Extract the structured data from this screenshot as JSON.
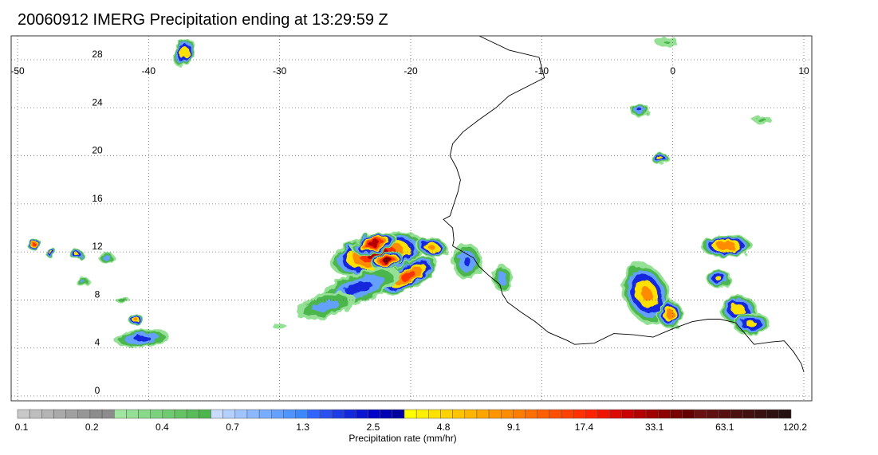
{
  "title": "20060912 IMERG Precipitation ending at 13:29:59 Z",
  "map": {
    "lon_range": [
      -50,
      10
    ],
    "lat_range": [
      -1,
      31
    ],
    "lon_ticks": [
      -50,
      -40,
      -30,
      -20,
      -10,
      0,
      10
    ],
    "lon_tick_labels": [
      "-50",
      "-40",
      "-30",
      "-20",
      "-10",
      "0",
      "10"
    ],
    "lat_ticks": [
      0,
      4,
      8,
      12,
      16,
      20,
      24,
      28
    ],
    "lat_tick_labels": [
      "0",
      "4",
      "8",
      "12",
      "16",
      "20",
      "24",
      "28"
    ],
    "grid": "dotted",
    "coastline": [
      [
        -14.8,
        30.0
      ],
      [
        -12.5,
        28.8
      ],
      [
        -10.2,
        28.2
      ],
      [
        -9.8,
        26.5
      ],
      [
        -12.5,
        25.0
      ],
      [
        -13.5,
        24.0
      ],
      [
        -14.8,
        23.0
      ],
      [
        -16.0,
        22.0
      ],
      [
        -16.8,
        21.0
      ],
      [
        -17.0,
        20.0
      ],
      [
        -16.5,
        19.0
      ],
      [
        -16.2,
        18.0
      ],
      [
        -16.4,
        17.0
      ],
      [
        -16.7,
        16.0
      ],
      [
        -17.0,
        15.0
      ],
      [
        -17.5,
        14.7
      ],
      [
        -16.8,
        14.0
      ],
      [
        -16.7,
        13.0
      ],
      [
        -16.8,
        12.5
      ],
      [
        -16.0,
        12.0
      ],
      [
        -15.2,
        11.5
      ],
      [
        -14.8,
        10.8
      ],
      [
        -14.0,
        10.0
      ],
      [
        -13.2,
        9.3
      ],
      [
        -13.0,
        8.5
      ],
      [
        -12.6,
        7.8
      ],
      [
        -11.6,
        7.0
      ],
      [
        -10.5,
        6.2
      ],
      [
        -9.5,
        5.3
      ],
      [
        -8.0,
        4.6
      ],
      [
        -7.5,
        4.3
      ],
      [
        -6.0,
        4.4
      ],
      [
        -4.5,
        5.2
      ],
      [
        -3.0,
        5.1
      ],
      [
        -1.5,
        4.9
      ],
      [
        0.0,
        5.6
      ],
      [
        1.5,
        6.2
      ],
      [
        2.7,
        6.4
      ],
      [
        3.6,
        6.4
      ],
      [
        4.8,
        6.1
      ],
      [
        5.5,
        5.2
      ],
      [
        6.2,
        4.3
      ],
      [
        7.5,
        4.5
      ],
      [
        8.5,
        4.6
      ],
      [
        9.2,
        3.7
      ],
      [
        9.8,
        2.7
      ],
      [
        10.0,
        2.0
      ]
    ],
    "rain_cells": [
      {
        "lon": -22.5,
        "lat": 11.8,
        "rx": 3.8,
        "ry": 1.8,
        "rot": -12,
        "peak": 31.0
      },
      {
        "lon": -22.8,
        "lat": 12.7,
        "rx": 1.8,
        "ry": 0.9,
        "rot": -15,
        "peak": 38.0
      },
      {
        "lon": -21.8,
        "lat": 11.3,
        "rx": 1.3,
        "ry": 0.7,
        "rot": -15,
        "peak": 42.0
      },
      {
        "lon": -20.2,
        "lat": 10.0,
        "rx": 2.6,
        "ry": 1.1,
        "rot": -30,
        "peak": 20.0
      },
      {
        "lon": -24.0,
        "lat": 9.0,
        "rx": 3.5,
        "ry": 1.3,
        "rot": -20,
        "peak": 2.5
      },
      {
        "lon": -26.5,
        "lat": 7.5,
        "rx": 2.5,
        "ry": 1.0,
        "rot": -15,
        "peak": 1.4
      },
      {
        "lon": -18.4,
        "lat": 12.4,
        "rx": 1.3,
        "ry": 0.8,
        "rot": 10,
        "peak": 9.5
      },
      {
        "lon": -15.7,
        "lat": 11.2,
        "rx": 1.2,
        "ry": 1.6,
        "rot": 0,
        "peak": 2.0
      },
      {
        "lon": -13.0,
        "lat": 9.8,
        "rx": 0.8,
        "ry": 1.2,
        "rot": 0,
        "peak": 1.5
      },
      {
        "lon": -2.0,
        "lat": 8.5,
        "rx": 1.8,
        "ry": 2.8,
        "rot": -25,
        "peak": 8.5
      },
      {
        "lon": -0.2,
        "lat": 6.8,
        "rx": 1.0,
        "ry": 1.2,
        "rot": 0,
        "peak": 12.0
      },
      {
        "lon": 4.1,
        "lat": 12.5,
        "rx": 2.0,
        "ry": 1.0,
        "rot": 0,
        "peak": 14.0
      },
      {
        "lon": 5.0,
        "lat": 7.2,
        "rx": 1.5,
        "ry": 1.2,
        "rot": 0,
        "peak": 6.0
      },
      {
        "lon": 6.0,
        "lat": 6.0,
        "rx": 1.5,
        "ry": 1.0,
        "rot": 0,
        "peak": 5.0
      },
      {
        "lon": 3.5,
        "lat": 9.8,
        "rx": 1.0,
        "ry": 0.8,
        "rot": 0,
        "peak": 4.8
      },
      {
        "lon": -40.5,
        "lat": 4.8,
        "rx": 2.2,
        "ry": 0.8,
        "rot": -5,
        "peak": 2.4
      },
      {
        "lon": -41.0,
        "lat": 6.4,
        "rx": 0.6,
        "ry": 0.5,
        "rot": 0,
        "peak": 9.0
      },
      {
        "lon": -37.3,
        "lat": 28.6,
        "rx": 0.8,
        "ry": 1.3,
        "rot": 25,
        "peak": 7.0
      },
      {
        "lon": -48.7,
        "lat": 12.6,
        "rx": 0.6,
        "ry": 0.5,
        "rot": 0,
        "peak": 20.0
      },
      {
        "lon": -47.5,
        "lat": 12.0,
        "rx": 0.5,
        "ry": 0.4,
        "rot": 0,
        "peak": 6.0
      },
      {
        "lon": -45.5,
        "lat": 11.8,
        "rx": 0.6,
        "ry": 0.4,
        "rot": 0,
        "peak": 5.0
      },
      {
        "lon": -43.2,
        "lat": 11.5,
        "rx": 0.7,
        "ry": 0.4,
        "rot": 0,
        "peak": 1.5
      },
      {
        "lon": -45.0,
        "lat": 9.5,
        "rx": 0.6,
        "ry": 0.4,
        "rot": 0,
        "peak": 1.2
      },
      {
        "lon": -42.0,
        "lat": 8.0,
        "rx": 0.6,
        "ry": 0.3,
        "rot": 0,
        "peak": 0.8
      },
      {
        "lon": -1.0,
        "lat": 19.8,
        "rx": 0.7,
        "ry": 0.5,
        "rot": 0,
        "peak": 6.0
      },
      {
        "lon": -2.5,
        "lat": 23.8,
        "rx": 0.8,
        "ry": 0.6,
        "rot": 0,
        "peak": 2.0
      },
      {
        "lon": -0.5,
        "lat": 29.5,
        "rx": 1.0,
        "ry": 0.5,
        "rot": 0,
        "peak": 0.5
      },
      {
        "lon": 6.8,
        "lat": 23.0,
        "rx": 0.8,
        "ry": 0.4,
        "rot": 0,
        "peak": 0.6
      },
      {
        "lon": -30.0,
        "lat": 5.8,
        "rx": 0.8,
        "ry": 0.4,
        "rot": 0,
        "peak": 0.3
      }
    ]
  },
  "colorbar": {
    "label": "Precipitation rate (mm/hr)",
    "tick_labels": [
      "0.1",
      "0.2",
      "0.4",
      "0.7",
      "1.3",
      "2.5",
      "4.8",
      "9.1",
      "17.4",
      "33.1",
      "63.1",
      "120.2"
    ],
    "colors": [
      "#c8c8c8",
      "#bebebe",
      "#b4b4b4",
      "#aaaaaa",
      "#a0a0a0",
      "#969696",
      "#8c8c8c",
      "#8c8c8c",
      "#a0e6a0",
      "#94e094",
      "#88d988",
      "#7cd27c",
      "#70cb70",
      "#64c464",
      "#58bd58",
      "#4cb64c",
      "#c8dcff",
      "#b4d0ff",
      "#a0c4ff",
      "#8cb8ff",
      "#78acff",
      "#64a0ff",
      "#5094ff",
      "#3c88ff",
      "#3264ff",
      "#2850f0",
      "#1e3ce6",
      "#1428dc",
      "#0a14d2",
      "#0000c8",
      "#0000b4",
      "#0000a0",
      "#ffff00",
      "#fff000",
      "#ffe100",
      "#ffd200",
      "#ffc300",
      "#ffb400",
      "#ffa500",
      "#ff9600",
      "#ff8c00",
      "#ff7d00",
      "#ff6e00",
      "#ff5f00",
      "#ff5000",
      "#ff4100",
      "#ff3200",
      "#ff2300",
      "#f01400",
      "#dc0a00",
      "#c80000",
      "#b40000",
      "#a00000",
      "#8c0000",
      "#780000",
      "#640000",
      "#6a1010",
      "#601010",
      "#561010",
      "#4c1010",
      "#421010",
      "#381010",
      "#2e1010",
      "#241010"
    ]
  }
}
